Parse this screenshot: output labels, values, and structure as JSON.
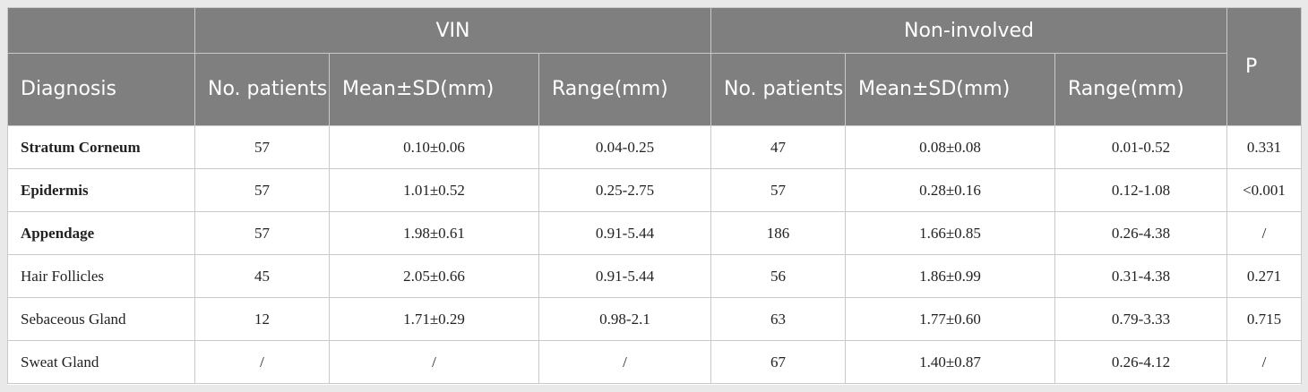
{
  "header": {
    "group_vin": "VIN",
    "group_noninvolved": "Non-involved",
    "diagnosis": "Diagnosis",
    "p": "P",
    "vin_cols": [
      "No. patients",
      "Mean±SD(mm)",
      "Range(mm)"
    ],
    "noninvolved_cols": [
      "No. patients",
      "Mean±SD(mm)",
      "Range(mm)"
    ]
  },
  "rows": [
    {
      "diagnosis": "Stratum Corneum",
      "bold": true,
      "vin_n": "57",
      "vin_mean": "0.10±0.06",
      "vin_range": "0.04-0.25",
      "ni_n": "47",
      "ni_mean": "0.08±0.08",
      "ni_range": "0.01-0.52",
      "p": "0.331"
    },
    {
      "diagnosis": "Epidermis",
      "bold": true,
      "vin_n": "57",
      "vin_mean": "1.01±0.52",
      "vin_range": "0.25-2.75",
      "ni_n": "57",
      "ni_mean": "0.28±0.16",
      "ni_range": "0.12-1.08",
      "p": "<0.001"
    },
    {
      "diagnosis": "Appendage",
      "bold": true,
      "vin_n": "57",
      "vin_mean": "1.98±0.61",
      "vin_range": "0.91-5.44",
      "ni_n": "186",
      "ni_mean": "1.66±0.85",
      "ni_range": "0.26-4.38",
      "p": "/"
    },
    {
      "diagnosis": "Hair Follicles",
      "bold": false,
      "vin_n": "45",
      "vin_mean": "2.05±0.66",
      "vin_range": "0.91-5.44",
      "ni_n": "56",
      "ni_mean": "1.86±0.99",
      "ni_range": "0.31-4.38",
      "p": "0.271"
    },
    {
      "diagnosis": "Sebaceous Gland",
      "bold": false,
      "vin_n": "12",
      "vin_mean": "1.71±0.29",
      "vin_range": "0.98-2.1",
      "ni_n": "63",
      "ni_mean": "1.77±0.60",
      "ni_range": "0.79-3.33",
      "p": "0.715"
    },
    {
      "diagnosis": "Sweat Gland",
      "bold": false,
      "vin_n": "/",
      "vin_mean": "/",
      "vin_range": "/",
      "ni_n": "67",
      "ni_mean": "1.40±0.87",
      "ni_range": "0.26-4.12",
      "p": "/"
    }
  ]
}
